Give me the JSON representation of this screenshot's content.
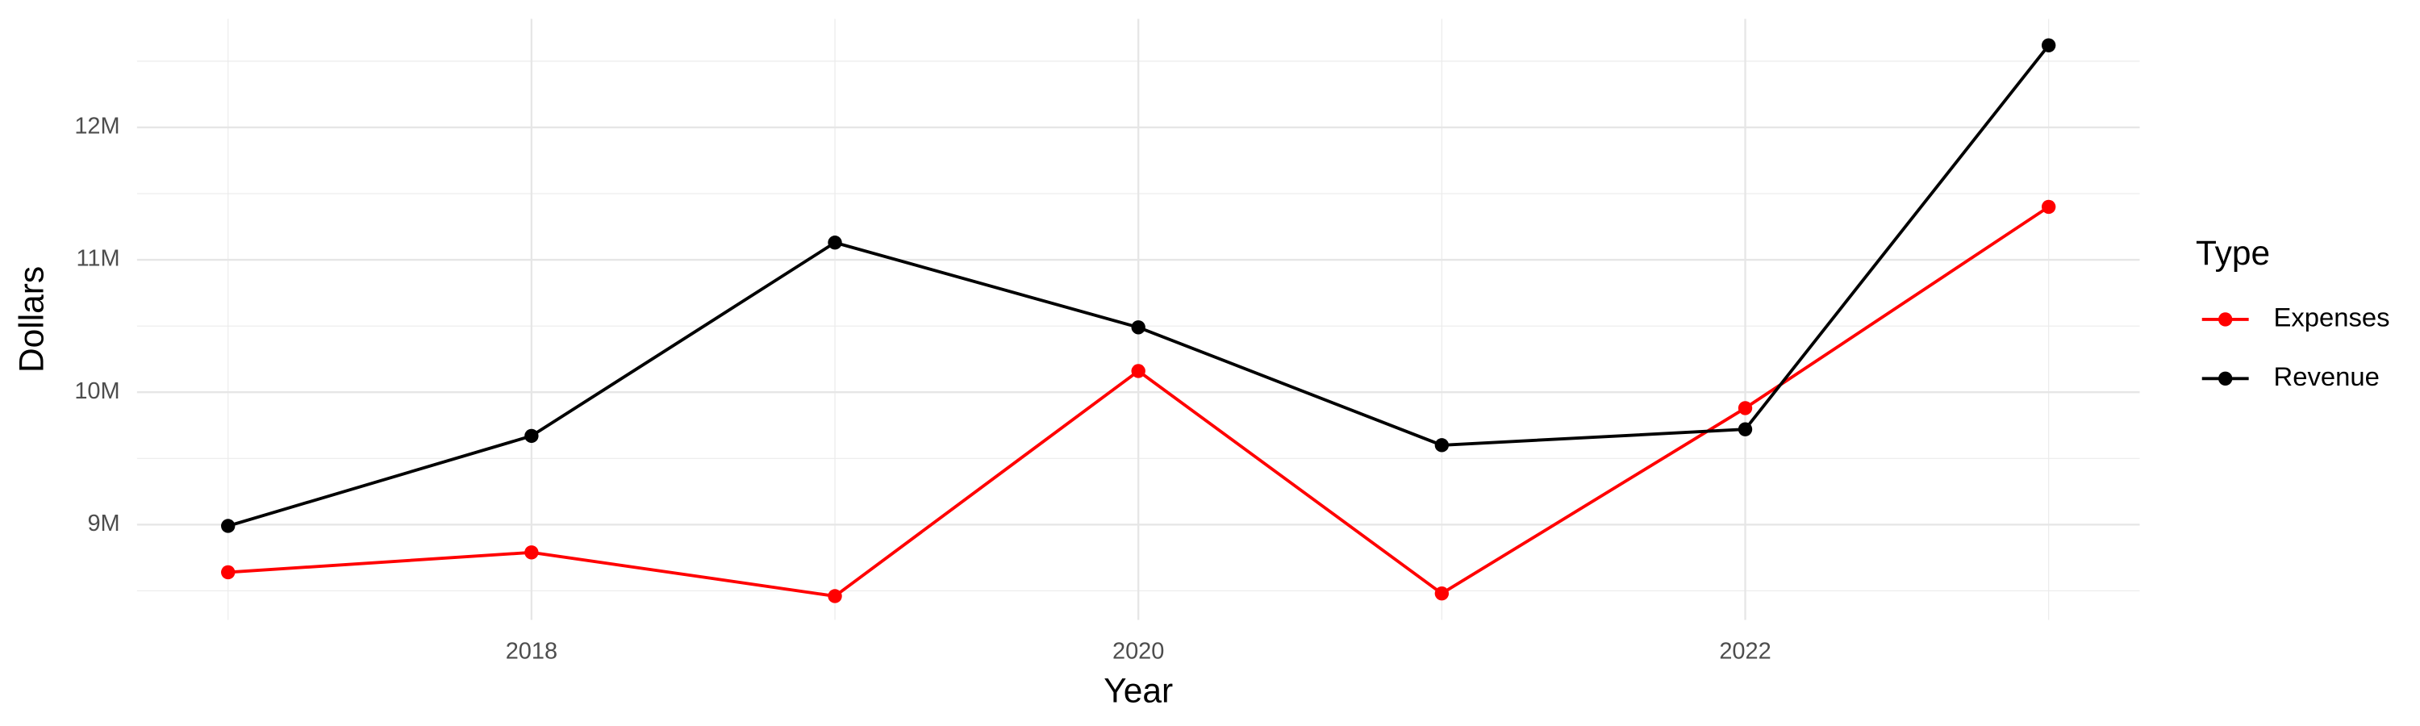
{
  "chart_data": {
    "type": "line",
    "x_label": "Year",
    "y_label": "Dollars",
    "legend_title": "Type",
    "x": [
      2017,
      2018,
      2019,
      2020,
      2021,
      2022,
      2023
    ],
    "series": [
      {
        "name": "Expenses",
        "color": "#ff0000",
        "values": [
          8640000,
          8790000,
          8460000,
          10160000,
          8480000,
          9880000,
          11400000
        ]
      },
      {
        "name": "Revenue",
        "color": "#000000",
        "values": [
          8990000,
          9670000,
          11130000,
          10490000,
          9600000,
          9720000,
          12620000
        ]
      }
    ],
    "xlim": [
      2016.7,
      2023.3
    ],
    "xticks": [
      2018,
      2020,
      2022
    ],
    "xminorticks": [
      2017,
      2019,
      2021,
      2023
    ],
    "ylim": [
      8280000,
      12820000
    ],
    "yticks": [
      {
        "value": 9000000,
        "label": "9M"
      },
      {
        "value": 10000000,
        "label": "10M"
      },
      {
        "value": 11000000,
        "label": "11M"
      },
      {
        "value": 12000000,
        "label": "12M"
      }
    ],
    "yminorticks": [
      8500000,
      9500000,
      10500000,
      11500000,
      12500000
    ],
    "grid": true,
    "legend_position": "right"
  }
}
